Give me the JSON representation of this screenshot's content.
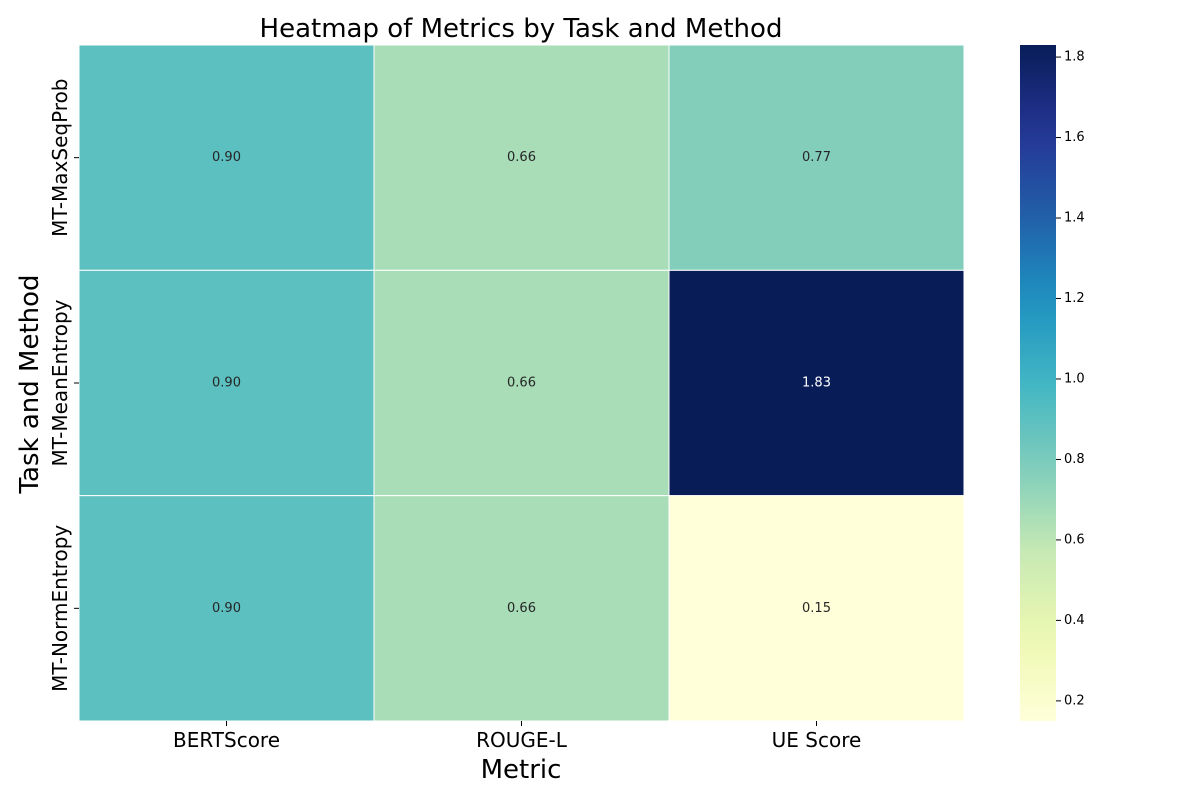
{
  "chart_data": {
    "type": "heatmap",
    "title": "Heatmap of Metrics by Task and Method",
    "xlabel": "Metric",
    "ylabel": "Task and Method",
    "x_categories": [
      "BERTScore",
      "ROUGE-L",
      "UE Score"
    ],
    "y_categories": [
      "MT-MaxSeqProb",
      "MT-MeanEntropy",
      "MT-NormEntropy"
    ],
    "values": [
      [
        0.9,
        0.66,
        0.77
      ],
      [
        0.9,
        0.66,
        1.83
      ],
      [
        0.9,
        0.66,
        0.15
      ]
    ],
    "value_labels": [
      [
        "0.90",
        "0.66",
        "0.77"
      ],
      [
        "0.90",
        "0.66",
        "1.83"
      ],
      [
        "0.90",
        "0.66",
        "0.15"
      ]
    ],
    "colormap": "YlGnBu",
    "colorbar": {
      "min": 0.15,
      "max": 1.83,
      "ticks": [
        0.2,
        0.4,
        0.6,
        0.8,
        1.0,
        1.2,
        1.4,
        1.6,
        1.8
      ],
      "tick_labels": [
        "0.2",
        "0.4",
        "0.6",
        "0.8",
        "1.0",
        "1.2",
        "1.4",
        "1.6",
        "1.8"
      ]
    },
    "grid": false,
    "legend": "colorbar-right"
  }
}
